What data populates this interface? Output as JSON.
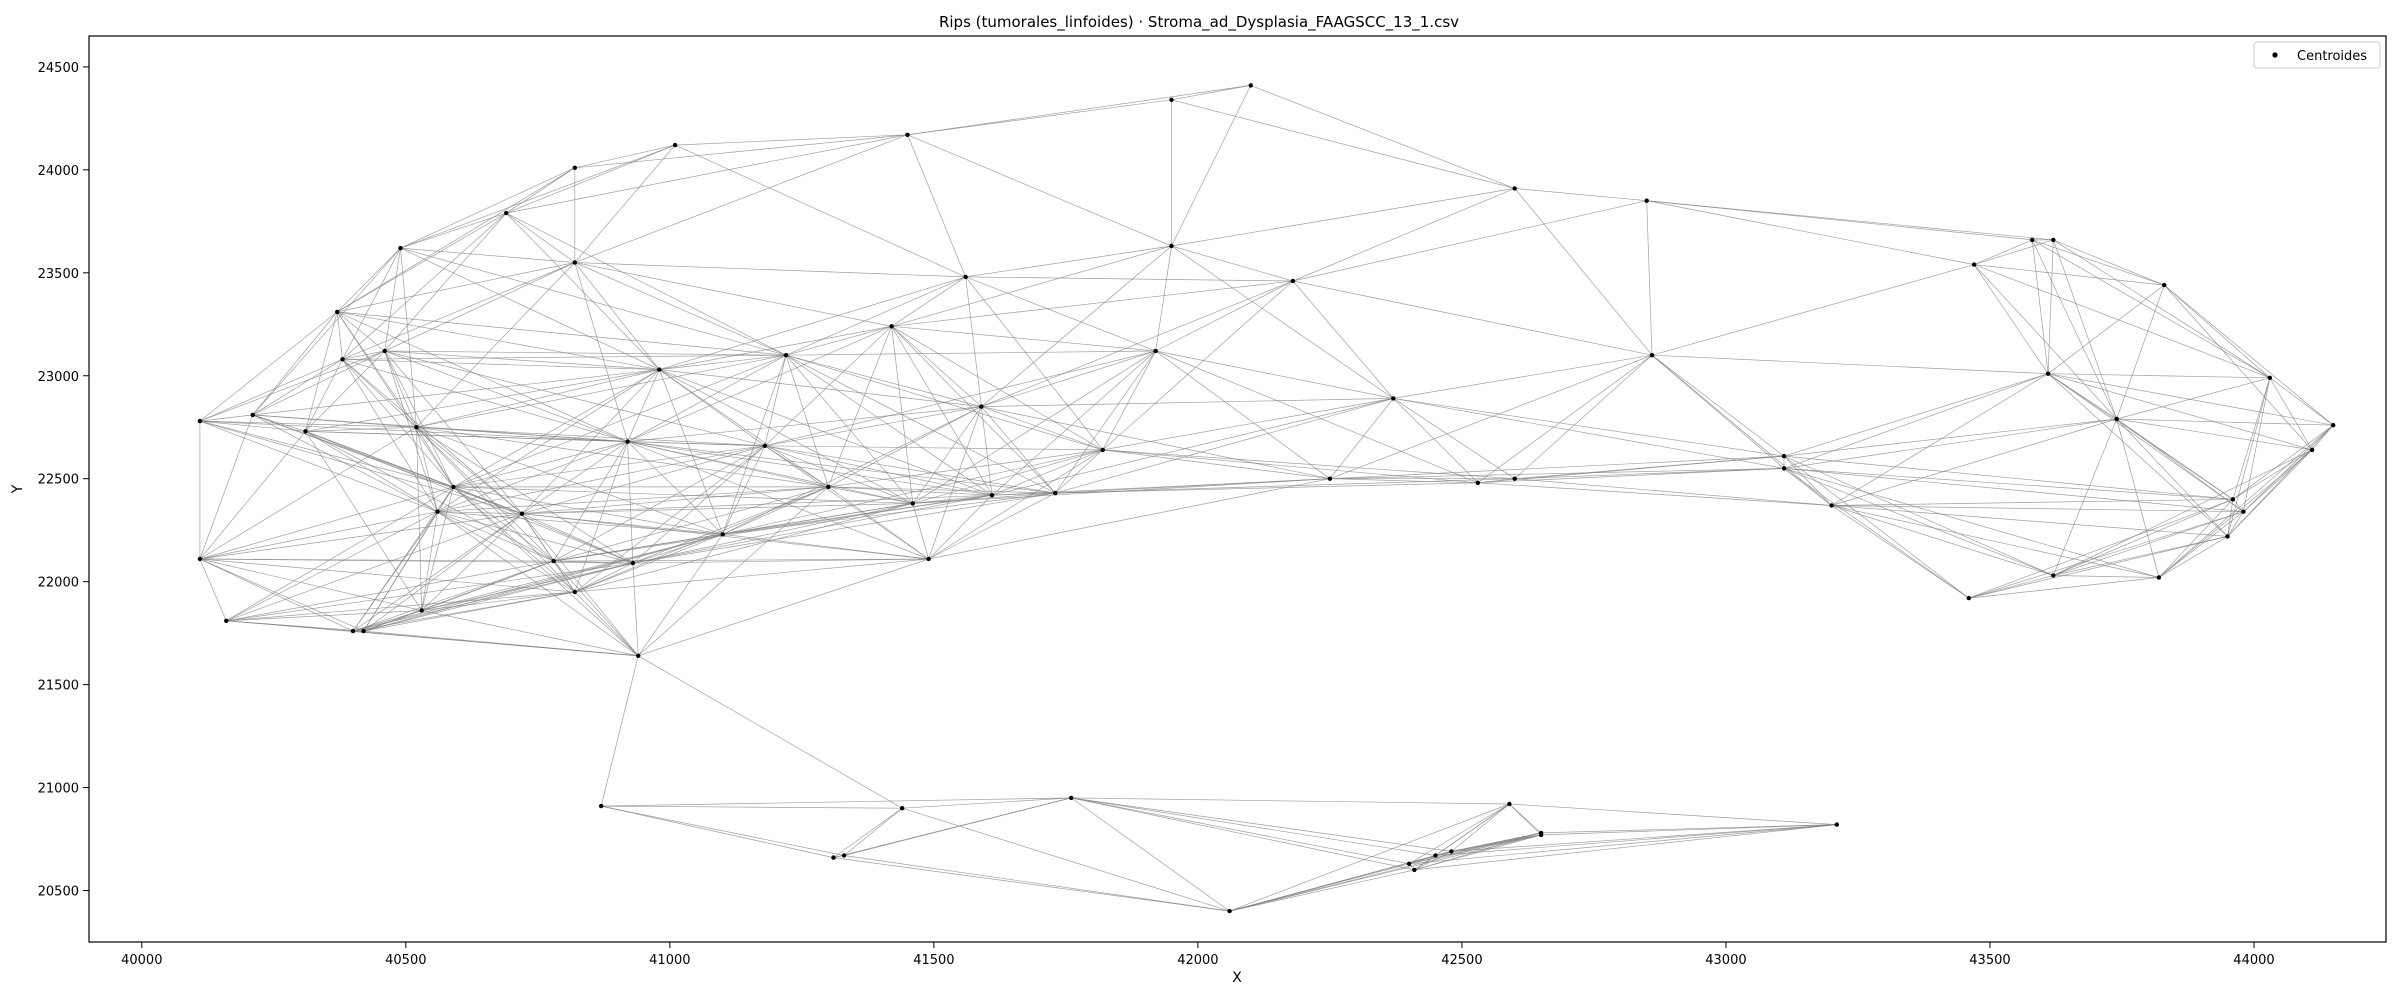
{
  "chart_data": {
    "type": "scatter",
    "title": "Rips (tumorales_linfoides) · Stroma_ad_Dysplasia_FAAGSCC_13_1.csv",
    "xlabel": "X",
    "ylabel": "Y",
    "xlim": [
      39900,
      44250
    ],
    "ylim": [
      20250,
      24650
    ],
    "xticks": [
      40000,
      40500,
      41000,
      41500,
      42000,
      42500,
      43000,
      43500,
      44000
    ],
    "yticks": [
      20500,
      21000,
      21500,
      22000,
      22500,
      23000,
      23500,
      24000,
      24500
    ],
    "grid": false,
    "legend": {
      "position": "top-right",
      "entries": [
        "Centroides"
      ]
    },
    "colors": {
      "points": "#000000",
      "edges": "#808080",
      "axes": "#000000"
    },
    "series": [
      {
        "name": "Centroides",
        "points": [
          [
            40110,
            22780
          ],
          [
            40110,
            22110
          ],
          [
            40160,
            21810
          ],
          [
            40210,
            22810
          ],
          [
            40310,
            22730
          ],
          [
            40370,
            23310
          ],
          [
            40380,
            23080
          ],
          [
            40400,
            21760
          ],
          [
            40420,
            21760
          ],
          [
            40460,
            23120
          ],
          [
            40490,
            23620
          ],
          [
            40520,
            22750
          ],
          [
            40530,
            21860
          ],
          [
            40560,
            22340
          ],
          [
            40590,
            22460
          ],
          [
            40690,
            23790
          ],
          [
            40720,
            22330
          ],
          [
            40780,
            22100
          ],
          [
            40820,
            21950
          ],
          [
            40820,
            24010
          ],
          [
            40820,
            23550
          ],
          [
            40920,
            22680
          ],
          [
            40930,
            22090
          ],
          [
            40940,
            21640
          ],
          [
            40980,
            23030
          ],
          [
            41010,
            24120
          ],
          [
            41100,
            22230
          ],
          [
            41180,
            22660
          ],
          [
            41220,
            23100
          ],
          [
            41300,
            22460
          ],
          [
            41420,
            23240
          ],
          [
            41450,
            24170
          ],
          [
            41460,
            22380
          ],
          [
            41490,
            22110
          ],
          [
            41560,
            23480
          ],
          [
            41590,
            22850
          ],
          [
            41610,
            22420
          ],
          [
            41730,
            22430
          ],
          [
            41820,
            22640
          ],
          [
            41920,
            23120
          ],
          [
            41950,
            23630
          ],
          [
            41950,
            24340
          ],
          [
            42100,
            24410
          ],
          [
            42180,
            23460
          ],
          [
            42250,
            22500
          ],
          [
            42370,
            22890
          ],
          [
            42530,
            22480
          ],
          [
            42600,
            22500
          ],
          [
            42600,
            23910
          ],
          [
            42850,
            23850
          ],
          [
            42860,
            23100
          ],
          [
            43110,
            22610
          ],
          [
            43110,
            22550
          ],
          [
            43200,
            22370
          ],
          [
            43470,
            23540
          ],
          [
            43460,
            21920
          ],
          [
            43580,
            23660
          ],
          [
            43610,
            23010
          ],
          [
            43620,
            23660
          ],
          [
            43620,
            22030
          ],
          [
            43740,
            22790
          ],
          [
            43820,
            22020
          ],
          [
            43830,
            23440
          ],
          [
            43950,
            22220
          ],
          [
            43960,
            22400
          ],
          [
            43980,
            22340
          ],
          [
            44030,
            22990
          ],
          [
            44110,
            22640
          ],
          [
            44150,
            22760
          ],
          [
            40870,
            20910
          ],
          [
            41310,
            20660
          ],
          [
            41330,
            20670
          ],
          [
            41440,
            20900
          ],
          [
            41760,
            20950
          ],
          [
            42060,
            20400
          ],
          [
            42400,
            20630
          ],
          [
            42410,
            20600
          ],
          [
            42450,
            20670
          ],
          [
            42480,
            20690
          ],
          [
            42590,
            20920
          ],
          [
            42650,
            20780
          ],
          [
            42650,
            20770
          ],
          [
            43210,
            20820
          ]
        ]
      }
    ]
  }
}
